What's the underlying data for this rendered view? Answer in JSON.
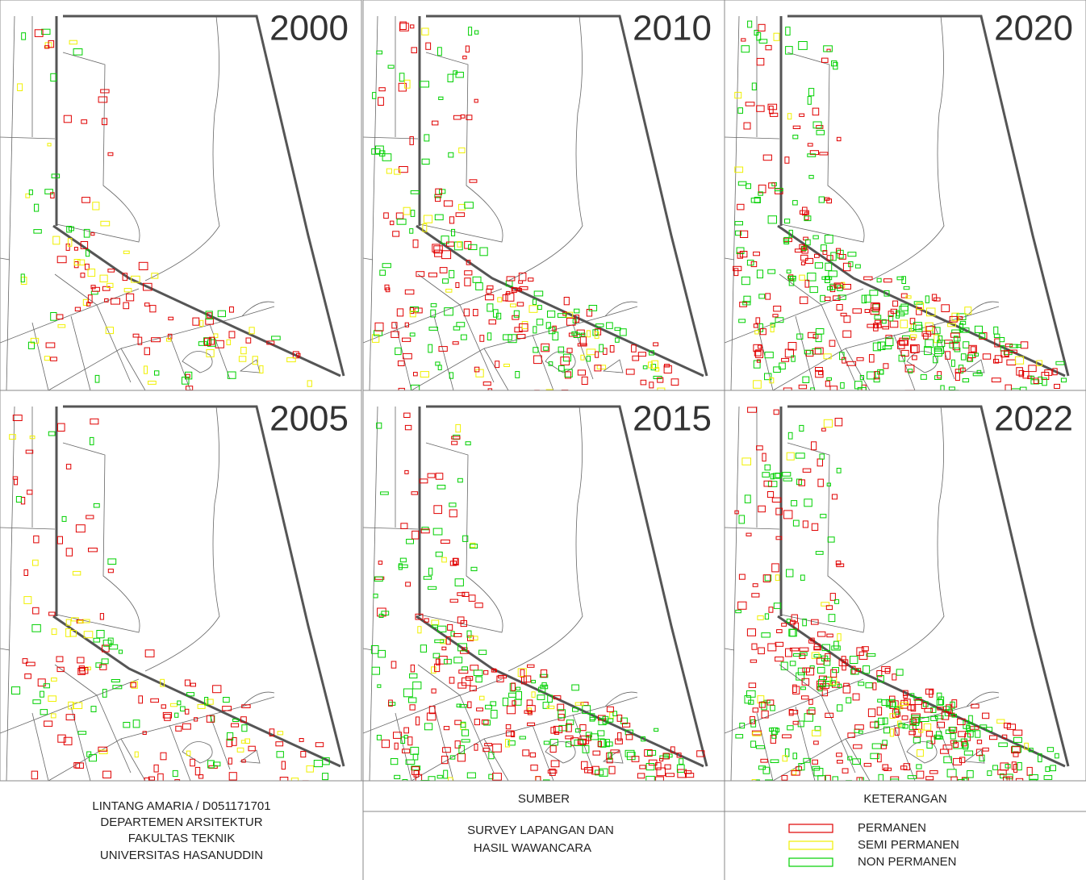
{
  "panels": [
    {
      "year": "2000"
    },
    {
      "year": "2010"
    },
    {
      "year": "2020"
    },
    {
      "year": "2005"
    },
    {
      "year": "2015"
    },
    {
      "year": "2022"
    }
  ],
  "footer": {
    "author": [
      "LINTANG AMARIA / D051171701",
      "DEPARTEMEN ARSITEKTUR",
      "FAKULTAS TEKNIK",
      "UNIVERSITAS HASANUDDIN"
    ],
    "source": {
      "title": "SUMBER",
      "lines": [
        "SURVEY LAPANGAN DAN",
        "HASIL WAWANCARA"
      ]
    },
    "legend": {
      "title": "KETERANGAN",
      "items": [
        {
          "label": "PERMANEN",
          "color": "#e00000"
        },
        {
          "label": "SEMI PERMANEN",
          "color": "#f0f000"
        },
        {
          "label": "NON PERMANEN",
          "color": "#00d000"
        }
      ]
    }
  }
}
